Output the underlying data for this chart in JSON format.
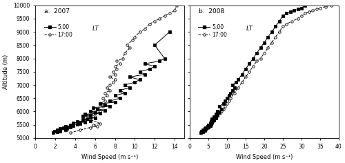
{
  "panel_a": {
    "title": "a:  2007",
    "xlabel": "Wind Speed (m s⁻¹)",
    "ylabel": "Altitude (m)",
    "xlim": [
      0,
      15
    ],
    "ylim": [
      5000,
      10000
    ],
    "xticks": [
      0,
      2,
      4,
      6,
      8,
      10,
      12,
      14
    ],
    "yticks": [
      5000,
      5500,
      6000,
      6500,
      7000,
      7500,
      8000,
      8500,
      9000,
      9500,
      10000
    ],
    "series_500": {
      "wind": [
        1.8,
        2.2,
        1.9,
        2.5,
        2.2,
        3.0,
        2.5,
        3.2,
        2.8,
        3.5,
        3.0,
        3.8,
        3.5,
        4.2,
        4.5,
        3.8,
        5.0,
        4.2,
        5.5,
        4.8,
        5.2,
        6.0,
        5.5,
        4.8,
        5.5,
        5.0,
        6.5,
        6.0,
        5.5,
        7.0,
        6.2,
        5.8,
        7.5,
        7.0,
        6.5,
        8.0,
        7.5,
        8.5,
        8.0,
        9.0,
        8.5,
        9.5,
        9.0,
        10.0,
        10.5,
        9.5,
        11.0,
        10.5,
        11.5,
        12.0,
        11.0,
        12.5,
        13.0,
        12.0,
        13.5
      ],
      "alt": [
        5200,
        5220,
        5250,
        5270,
        5300,
        5320,
        5350,
        5370,
        5400,
        5420,
        5450,
        5470,
        5500,
        5520,
        5550,
        5580,
        5600,
        5630,
        5660,
        5700,
        5730,
        5760,
        5800,
        5830,
        5860,
        5900,
        5930,
        5970,
        6000,
        6050,
        6100,
        6150,
        6200,
        6250,
        6300,
        6350,
        6400,
        6500,
        6600,
        6700,
        6800,
        6900,
        7000,
        7100,
        7200,
        7300,
        7400,
        7500,
        7600,
        7700,
        7800,
        7900,
        8000,
        8500,
        9000
      ]
    },
    "series_1700": {
      "wind": [
        3.5,
        4.5,
        5.5,
        6.2,
        5.8,
        6.5,
        5.5,
        6.0,
        5.8,
        6.5,
        6.2,
        6.8,
        6.5,
        7.0,
        6.8,
        7.2,
        7.0,
        7.5,
        7.2,
        7.5,
        7.8,
        8.0,
        7.5,
        8.0,
        7.8,
        8.2,
        8.0,
        8.5,
        8.2,
        8.8,
        9.0,
        9.5,
        9.2,
        9.8,
        10.0,
        10.5,
        11.0,
        11.5,
        12.0,
        12.5,
        13.0,
        13.5,
        14.0,
        14.2
      ],
      "alt": [
        5200,
        5300,
        5400,
        5450,
        5500,
        5550,
        5700,
        5800,
        5900,
        6000,
        6100,
        6200,
        6300,
        6400,
        6500,
        6600,
        6700,
        6800,
        6900,
        7000,
        7100,
        7200,
        7300,
        7400,
        7500,
        7600,
        7700,
        7800,
        7900,
        8000,
        8200,
        8400,
        8500,
        8700,
        8800,
        9000,
        9100,
        9300,
        9400,
        9500,
        9600,
        9700,
        9800,
        10000
      ]
    }
  },
  "panel_b": {
    "title": "b:  2008",
    "xlabel": "Wind Speed (m s⁻¹)",
    "ylabel": "",
    "xlim": [
      0,
      40
    ],
    "ylim": [
      5000,
      10000
    ],
    "xticks": [
      0,
      5,
      10,
      15,
      20,
      25,
      30,
      35,
      40
    ],
    "yticks": [
      5000,
      5500,
      6000,
      6500,
      7000,
      7500,
      8000,
      8500,
      9000,
      9500,
      10000
    ],
    "series_500": {
      "wind": [
        3.0,
        3.5,
        3.2,
        4.0,
        3.5,
        4.2,
        4.0,
        4.5,
        4.2,
        5.0,
        4.8,
        5.5,
        5.0,
        5.8,
        5.5,
        6.0,
        5.8,
        6.5,
        6.0,
        7.0,
        6.5,
        7.5,
        7.0,
        8.0,
        7.5,
        8.5,
        8.0,
        9.0,
        9.5,
        10.0,
        10.5,
        11.0,
        11.5,
        12.0,
        11.5,
        12.5,
        13.0,
        14.0,
        15.0,
        16.0,
        17.0,
        18.0,
        19.0,
        20.0,
        21.0,
        22.0,
        23.0,
        24.0,
        25.0,
        26.0,
        27.0,
        28.0,
        29.0,
        30.0,
        31.0
      ],
      "alt": [
        5200,
        5230,
        5260,
        5280,
        5310,
        5330,
        5360,
        5380,
        5400,
        5420,
        5450,
        5470,
        5500,
        5520,
        5560,
        5600,
        5640,
        5680,
        5720,
        5760,
        5800,
        5850,
        5900,
        5950,
        6000,
        6100,
        6200,
        6300,
        6400,
        6500,
        6600,
        6700,
        6800,
        6900,
        7000,
        7100,
        7200,
        7400,
        7600,
        7800,
        8000,
        8200,
        8400,
        8600,
        8800,
        9000,
        9200,
        9400,
        9600,
        9700,
        9750,
        9800,
        9850,
        9900,
        10000
      ]
    },
    "series_1700": {
      "wind": [
        3.0,
        4.0,
        5.0,
        5.5,
        6.0,
        5.5,
        6.5,
        6.0,
        7.0,
        6.5,
        7.5,
        7.0,
        8.0,
        8.5,
        9.0,
        9.5,
        10.0,
        10.5,
        11.0,
        12.0,
        13.0,
        14.0,
        15.0,
        16.0,
        17.0,
        18.0,
        19.0,
        20.0,
        21.0,
        22.0,
        23.0,
        24.0,
        25.0,
        26.0,
        27.5,
        29.0,
        30.0,
        31.0,
        32.0,
        33.0,
        34.0,
        35.0,
        36.5,
        38.0
      ],
      "alt": [
        5200,
        5300,
        5400,
        5500,
        5550,
        5600,
        5650,
        5700,
        5750,
        5800,
        5850,
        5900,
        5950,
        6000,
        6100,
        6200,
        6300,
        6400,
        6500,
        6700,
        6900,
        7100,
        7300,
        7500,
        7700,
        7900,
        8000,
        8200,
        8400,
        8600,
        8800,
        9000,
        9200,
        9300,
        9400,
        9500,
        9600,
        9700,
        9750,
        9800,
        9850,
        9900,
        9950,
        10000
      ]
    }
  },
  "legend_500_label": "5:00",
  "legend_1700_label": "17:00",
  "legend_lt": "LT",
  "bg_color": "#ffffff",
  "line_color_500": "#000000",
  "line_color_1700": "#444444"
}
